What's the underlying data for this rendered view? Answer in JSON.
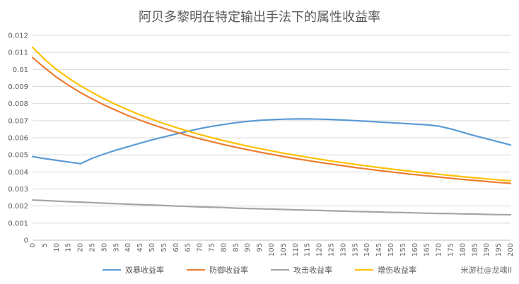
{
  "chart_data": {
    "type": "line",
    "title": "阿贝多黎明在特定输出手法下的属性收益率",
    "x": [
      0,
      5,
      10,
      15,
      20,
      25,
      30,
      35,
      40,
      45,
      50,
      55,
      60,
      65,
      70,
      75,
      80,
      85,
      90,
      95,
      100,
      105,
      110,
      115,
      120,
      125,
      130,
      135,
      140,
      145,
      150,
      155,
      160,
      165,
      170,
      175,
      180,
      185,
      190,
      195,
      200
    ],
    "xlim": [
      0,
      200
    ],
    "ylim": [
      0,
      0.012
    ],
    "y_ticks": [
      "0",
      "0.001",
      "0.002",
      "0.003",
      "0.004",
      "0.005",
      "0.006",
      "0.007",
      "0.008",
      "0.009",
      "0.01",
      "0.011",
      "0.012"
    ],
    "grid": true,
    "legend_position": "bottom",
    "series": [
      {
        "name": "双暴收益率",
        "color": "#5B9BD5",
        "values": [
          0.0049,
          0.00478,
          0.00468,
          0.00458,
          0.00448,
          0.0048,
          0.00505,
          0.00528,
          0.00548,
          0.00568,
          0.00588,
          0.00605,
          0.00622,
          0.00638,
          0.00654,
          0.00667,
          0.00678,
          0.00688,
          0.00696,
          0.00702,
          0.00706,
          0.00709,
          0.0071,
          0.0071,
          0.00709,
          0.00707,
          0.00704,
          0.007,
          0.00697,
          0.00692,
          0.00688,
          0.00684,
          0.0068,
          0.00676,
          0.00668,
          0.00652,
          0.00632,
          0.00612,
          0.00594,
          0.00576,
          0.00558
        ]
      },
      {
        "name": "防御收益率",
        "color": "#ED7D31",
        "values": [
          0.0107,
          0.0101,
          0.00955,
          0.00908,
          0.00865,
          0.00827,
          0.00792,
          0.0076,
          0.0073,
          0.00703,
          0.00678,
          0.00655,
          0.00633,
          0.00613,
          0.00594,
          0.00577,
          0.0056,
          0.00545,
          0.0053,
          0.00516,
          0.00503,
          0.0049,
          0.00478,
          0.00467,
          0.00456,
          0.00446,
          0.00436,
          0.00426,
          0.00417,
          0.00408,
          0.004,
          0.00392,
          0.00384,
          0.00377,
          0.0037,
          0.00363,
          0.00356,
          0.0035,
          0.00344,
          0.00338,
          0.00333
        ]
      },
      {
        "name": "攻击收益率",
        "color": "#A5A5A5",
        "values": [
          0.00235,
          0.00232,
          0.00229,
          0.00226,
          0.00223,
          0.0022,
          0.00217,
          0.00214,
          0.00211,
          0.00208,
          0.00206,
          0.00203,
          0.002,
          0.00198,
          0.00195,
          0.00193,
          0.00191,
          0.00188,
          0.00186,
          0.00184,
          0.00182,
          0.0018,
          0.00178,
          0.00176,
          0.00174,
          0.00172,
          0.0017,
          0.00168,
          0.00167,
          0.00165,
          0.00163,
          0.00162,
          0.0016,
          0.00158,
          0.00157,
          0.00156,
          0.00154,
          0.00153,
          0.00151,
          0.0015,
          0.00149
        ]
      },
      {
        "name": "增伤收益率",
        "color": "#FFC000",
        "values": [
          0.0113,
          0.0106,
          0.01,
          0.0095,
          0.00905,
          0.00865,
          0.00828,
          0.00794,
          0.00763,
          0.00734,
          0.00708,
          0.00683,
          0.0066,
          0.00639,
          0.00619,
          0.00601,
          0.00583,
          0.00567,
          0.00551,
          0.00537,
          0.00523,
          0.0051,
          0.00498,
          0.00486,
          0.00475,
          0.00464,
          0.00454,
          0.00444,
          0.00435,
          0.00426,
          0.00417,
          0.00409,
          0.00401,
          0.00393,
          0.00386,
          0.00379,
          0.00372,
          0.00366,
          0.00359,
          0.00353,
          0.00348
        ]
      }
    ]
  },
  "watermark": "米游社@龙魂II"
}
